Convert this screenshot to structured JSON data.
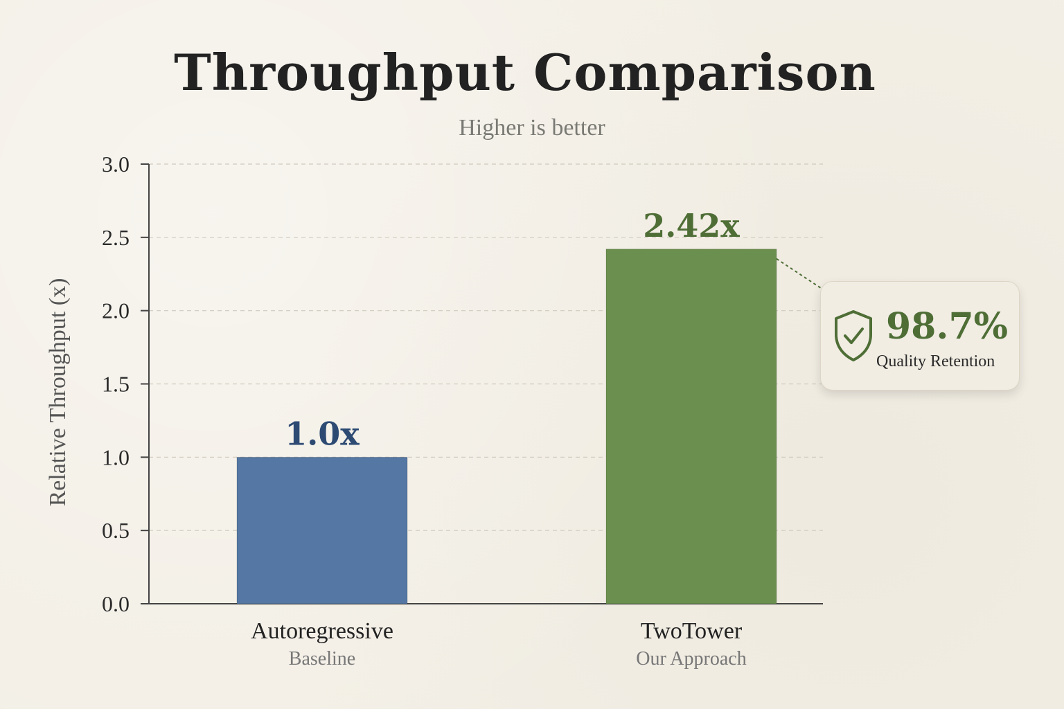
{
  "title": "Throughput Comparison",
  "subtitle": "Higher is better",
  "callout": {
    "value": "98.7%",
    "label": "Quality Retention",
    "icon": "shield-check-icon",
    "color": "#4e6e36"
  },
  "colors": {
    "autoregressive": "#5577a3",
    "twotower": "#6b8f4e",
    "autoregressive_label": "#2d4a73",
    "twotower_label": "#4e6e36"
  },
  "chart_data": {
    "type": "bar",
    "title": "Throughput Comparison",
    "subtitle": "Higher is better",
    "xlabel": "",
    "ylabel": "Relative Throughput (x)",
    "ylim": [
      0,
      3.0
    ],
    "yticks": [
      "0.0",
      "0.5",
      "1.0",
      "1.5",
      "2.0",
      "2.5",
      "3.0"
    ],
    "grid": true,
    "categories": [
      "Autoregressive",
      "TwoTower"
    ],
    "category_sublabels": [
      "Baseline",
      "Our Approach"
    ],
    "values": [
      1.0,
      2.42
    ],
    "value_labels": [
      "1.0x",
      "2.42x"
    ]
  }
}
